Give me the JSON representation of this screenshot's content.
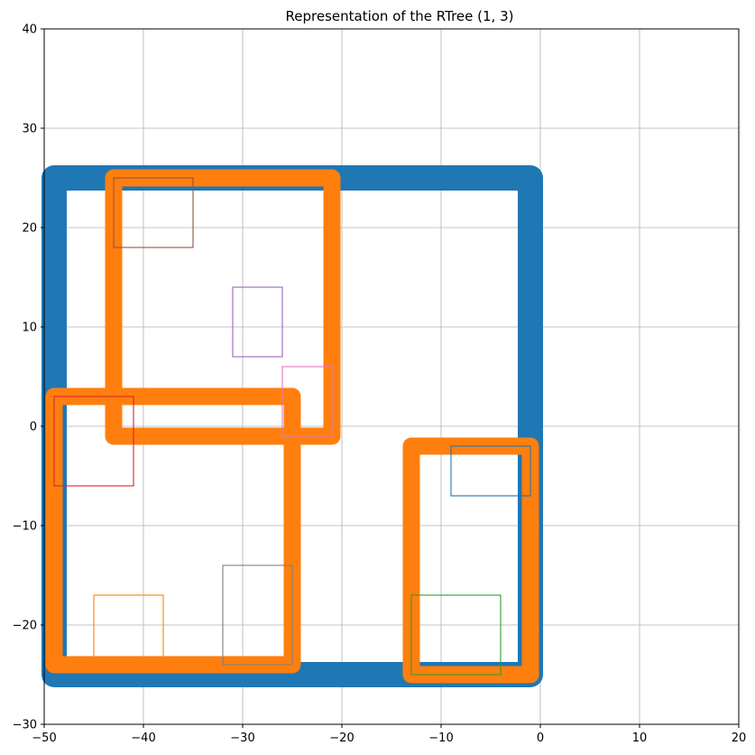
{
  "chart_data": {
    "type": "rectangles",
    "title": "Representation of the RTree (1, 3)",
    "xlabel": "",
    "ylabel": "",
    "xlim": [
      -50,
      20
    ],
    "ylim": [
      -30,
      40
    ],
    "grid": true,
    "xticks": [
      -50,
      -40,
      -30,
      -20,
      -10,
      0,
      10,
      20
    ],
    "yticks": [
      -30,
      -20,
      -10,
      0,
      10,
      20,
      30,
      40
    ],
    "xtick_labels": [
      "−50",
      "−40",
      "−30",
      "−20",
      "−10",
      "0",
      "10",
      "20"
    ],
    "ytick_labels": [
      "−30",
      "−20",
      "−10",
      "0",
      "10",
      "20",
      "30",
      "40"
    ],
    "root_nodes": [
      {
        "level": "root",
        "color": "#1f77b4",
        "xmin": -49,
        "xmax": -1,
        "ymin": -25,
        "ymax": 25
      }
    ],
    "inner_nodes": [
      {
        "level": "inner",
        "color": "#ff7f0e",
        "xmin": -43,
        "xmax": -21,
        "ymin": -1,
        "ymax": 25
      },
      {
        "level": "inner",
        "color": "#ff7f0e",
        "xmin": -49,
        "xmax": -25,
        "ymin": -24,
        "ymax": 3
      },
      {
        "level": "inner",
        "color": "#ff7f0e",
        "xmin": -13,
        "xmax": -1,
        "ymin": -25,
        "ymax": -2
      }
    ],
    "leaf_entries": [
      {
        "level": "leaf",
        "color": "#1f77b4",
        "xmin": -9,
        "xmax": -1,
        "ymin": -7,
        "ymax": -2
      },
      {
        "level": "leaf",
        "color": "#ff7f0e",
        "xmin": -45,
        "xmax": -38,
        "ymin": -24,
        "ymax": -17
      },
      {
        "level": "leaf",
        "color": "#2ca02c",
        "xmin": -13,
        "xmax": -4,
        "ymin": -25,
        "ymax": -17
      },
      {
        "level": "leaf",
        "color": "#d62728",
        "xmin": -49,
        "xmax": -41,
        "ymin": -6,
        "ymax": 3
      },
      {
        "level": "leaf",
        "color": "#9467bd",
        "xmin": -31,
        "xmax": -26,
        "ymin": 7,
        "ymax": 14
      },
      {
        "level": "leaf",
        "color": "#8c564b",
        "xmin": -43,
        "xmax": -35,
        "ymin": 18,
        "ymax": 25
      },
      {
        "level": "leaf",
        "color": "#e377c2",
        "xmin": -26,
        "xmax": -21,
        "ymin": -1,
        "ymax": 6
      },
      {
        "level": "leaf",
        "color": "#7f7f7f",
        "xmin": -32,
        "xmax": -25,
        "ymin": -24,
        "ymax": -14
      }
    ]
  }
}
